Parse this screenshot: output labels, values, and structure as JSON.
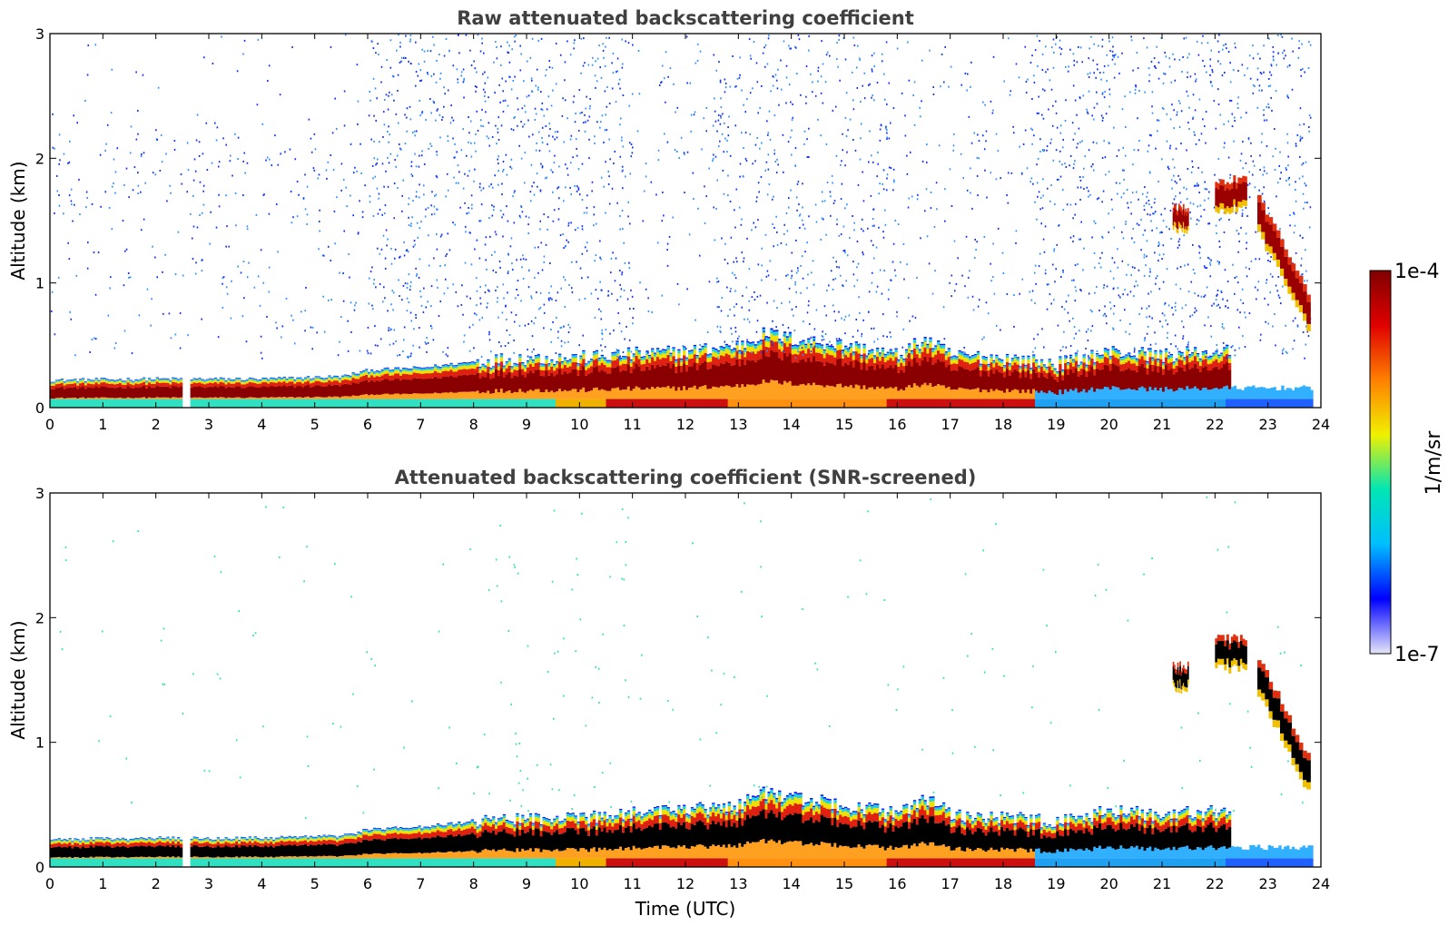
{
  "chart_data": [
    {
      "type": "heatmap",
      "title": "Raw attenuated backscattering coefficient",
      "xlabel": "",
      "ylabel": "Altitude (km)",
      "xlim": [
        0,
        24
      ],
      "ylim": [
        0,
        3
      ],
      "x_ticks": [
        "0",
        "1",
        "2",
        "3",
        "4",
        "5",
        "6",
        "7",
        "8",
        "9",
        "10",
        "11",
        "12",
        "13",
        "14",
        "15",
        "16",
        "17",
        "18",
        "19",
        "20",
        "21",
        "22",
        "23",
        "24"
      ],
      "y_ticks": [
        "0",
        "1",
        "2",
        "3"
      ],
      "data_gap_hours": [
        2.48,
        2.6
      ],
      "boundary_layer_top_km": {
        "hours": [
          0,
          2,
          4,
          5.5,
          6,
          7,
          8,
          9,
          10,
          11,
          12,
          13,
          13.5,
          14,
          15,
          16,
          16.5,
          17,
          18,
          19,
          20,
          21,
          22
        ],
        "values": [
          0.22,
          0.23,
          0.23,
          0.25,
          0.3,
          0.32,
          0.37,
          0.4,
          0.4,
          0.43,
          0.45,
          0.5,
          0.6,
          0.55,
          0.5,
          0.42,
          0.55,
          0.42,
          0.4,
          0.35,
          0.45,
          0.42,
          0.45
        ]
      },
      "cloud_layers": [
        {
          "start_hour": 21.2,
          "end_hour": 21.5,
          "base_km": 1.4,
          "top_km": 1.7
        },
        {
          "start_hour": 22.0,
          "end_hour": 22.6,
          "base_km": 1.55,
          "top_km": 1.95
        },
        {
          "start_hour": 22.8,
          "end_hour": 23.8,
          "base_km": 0.55,
          "top_km": 1.6
        }
      ]
    },
    {
      "type": "heatmap",
      "title": "Attenuated backscattering coefficient (SNR-screened)",
      "xlabel": "Time (UTC)",
      "ylabel": "Altitude (km)",
      "xlim": [
        0,
        24
      ],
      "ylim": [
        0,
        3
      ],
      "x_ticks": [
        "0",
        "1",
        "2",
        "3",
        "4",
        "5",
        "6",
        "7",
        "8",
        "9",
        "10",
        "11",
        "12",
        "13",
        "14",
        "15",
        "16",
        "17",
        "18",
        "19",
        "20",
        "21",
        "22",
        "23",
        "24"
      ],
      "y_ticks": [
        "0",
        "1",
        "2",
        "3"
      ]
    }
  ],
  "colorbar": {
    "label": "1/m/sr",
    "min_label": "1e-7",
    "max_label": "1e-4",
    "colormap": "jet",
    "stops": [
      "#e6e6fa",
      "#0000ff",
      "#00bfff",
      "#00e6b4",
      "#f0f000",
      "#ff8000",
      "#e00000",
      "#800000"
    ]
  }
}
